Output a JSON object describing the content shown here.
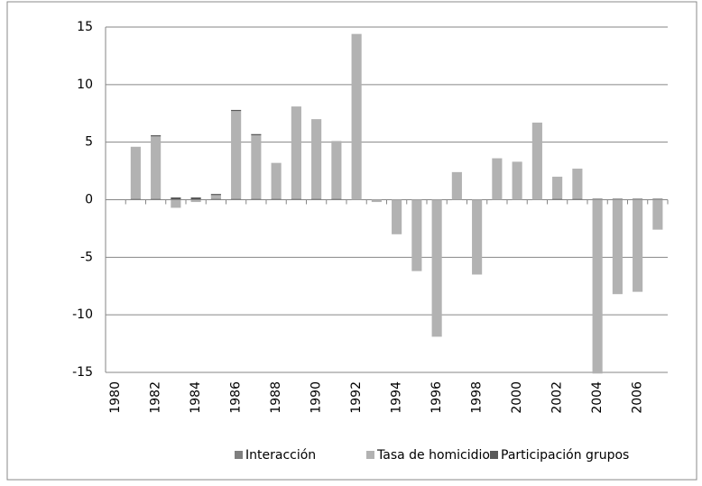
{
  "chart_data": {
    "type": "stacked-bar",
    "categories": [
      "1980",
      null,
      "1982",
      null,
      "1984",
      null,
      "1986",
      null,
      "1988",
      null,
      "1990",
      null,
      "1992",
      null,
      "1994",
      null,
      "1996",
      null,
      "1998",
      null,
      "2000",
      null,
      "2002",
      null,
      "2004",
      null,
      "2006",
      null
    ],
    "series": [
      {
        "name": "Interacción",
        "color": "#7f7f7f",
        "values": [
          null,
          0.1,
          0.1,
          0,
          0,
          0.1,
          0.1,
          0.1,
          0.1,
          0.1,
          0.1,
          0.1,
          0,
          0,
          0,
          0,
          0,
          0,
          0,
          0,
          0,
          0,
          0.1,
          0.1,
          0.1,
          0.1,
          0.1,
          0.1
        ]
      },
      {
        "name": "Tasa de homicidio",
        "color": "#b2b2b2",
        "values": [
          null,
          4.5,
          5.4,
          -0.7,
          -0.2,
          0.3,
          7.6,
          5.5,
          3.1,
          8.0,
          6.9,
          5.0,
          14.4,
          -0.2,
          -3.0,
          -6.2,
          -11.9,
          2.4,
          -6.5,
          3.6,
          3.3,
          6.7,
          1.9,
          2.6,
          -15.1,
          -8.2,
          -8.0,
          -2.6
        ]
      },
      {
        "name": "Participación grupos",
        "color": "#595959",
        "values": [
          null,
          0,
          0.1,
          0.2,
          0.2,
          0.1,
          0.1,
          0.1,
          0,
          0,
          0,
          0,
          0,
          0,
          0,
          0,
          0,
          0,
          0,
          0,
          0,
          0,
          0,
          0,
          0,
          0,
          0,
          0
        ]
      }
    ],
    "ylim": [
      -15,
      15
    ],
    "yticks": [
      -15,
      -10,
      -5,
      0,
      5,
      10,
      15
    ],
    "grid": true,
    "legend": "bottom"
  }
}
